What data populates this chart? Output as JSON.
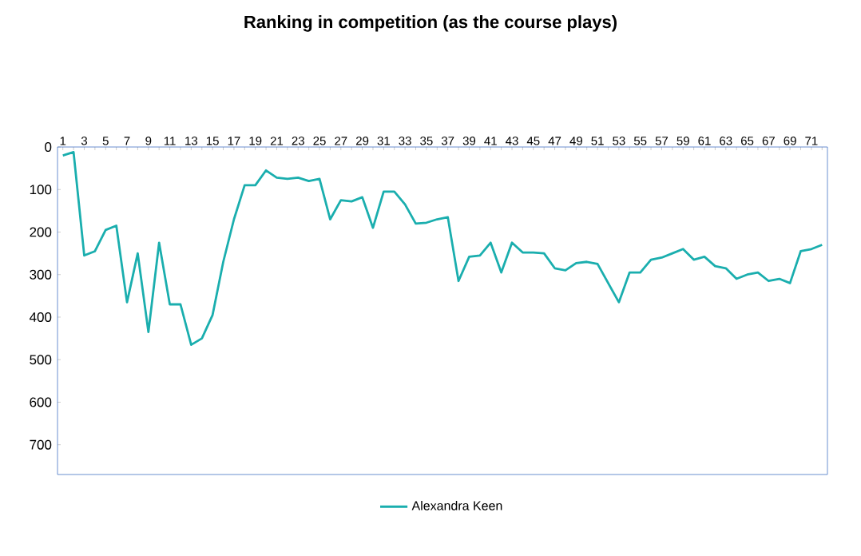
{
  "chart_data": {
    "type": "line",
    "title": "Ranking in competition (as the course plays)",
    "categories": [
      "1",
      null,
      "3",
      null,
      "5",
      null,
      "7",
      null,
      "9",
      null,
      "11",
      null,
      "13",
      null,
      "15",
      null,
      "17",
      null,
      "19",
      null,
      "21",
      null,
      "23",
      null,
      "25",
      null,
      "27",
      null,
      "29",
      null,
      "31",
      null,
      "33",
      null,
      "35",
      null,
      "37",
      null,
      "39",
      null,
      "41",
      null,
      "43",
      null,
      "45",
      null,
      "47",
      null,
      "49",
      null,
      "51",
      null,
      "53",
      null,
      "55",
      null,
      "57",
      null,
      "59",
      null,
      "61",
      null,
      "63",
      null,
      "65",
      null,
      "67",
      null,
      "69",
      null,
      "71",
      null
    ],
    "series": [
      {
        "name": "Alexandra Keen",
        "color": "#1aaeae",
        "values": [
          20,
          12,
          255,
          245,
          195,
          185,
          365,
          250,
          435,
          225,
          370,
          370,
          465,
          450,
          395,
          270,
          170,
          90,
          90,
          55,
          72,
          75,
          72,
          80,
          75,
          170,
          125,
          128,
          118,
          190,
          105,
          105,
          135,
          180,
          178,
          170,
          165,
          315,
          258,
          255,
          225,
          295,
          225,
          248,
          248,
          250,
          285,
          290,
          273,
          270,
          275,
          320,
          365,
          295,
          295,
          265,
          260,
          250,
          240,
          265,
          258,
          280,
          285,
          310,
          300,
          295,
          315,
          310,
          320,
          245,
          240,
          230
        ]
      }
    ],
    "ylim": [
      770,
      0
    ],
    "yticks": [
      0,
      100,
      200,
      300,
      400,
      500,
      600,
      700
    ],
    "grid": false,
    "legend": "bottom",
    "marker": "none",
    "line_style": "solid"
  }
}
